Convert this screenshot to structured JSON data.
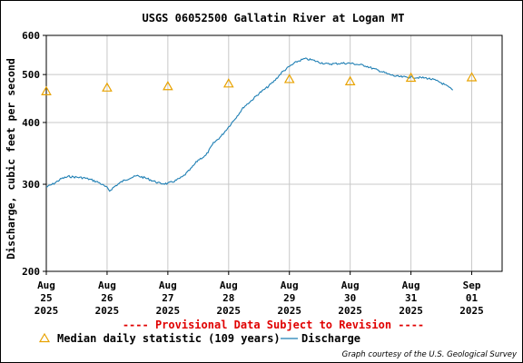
{
  "chart_data": {
    "type": "line",
    "title": "USGS 06052500 Gallatin River at Logan MT",
    "ylabel": "Discharge, cubic feet per second",
    "y_scale": "log",
    "ylim": [
      200,
      600
    ],
    "y_ticks": [
      200,
      300,
      400,
      500,
      600
    ],
    "x_start": "2025-08-25T00:00",
    "x_end": "2025-09-01T12:00",
    "x_tick_dates": [
      "2025-08-25",
      "2025-08-26",
      "2025-08-27",
      "2025-08-28",
      "2025-08-29",
      "2025-08-30",
      "2025-08-31",
      "2025-09-01"
    ],
    "x_tick_labels": [
      [
        "Aug",
        "25",
        "2025"
      ],
      [
        "Aug",
        "26",
        "2025"
      ],
      [
        "Aug",
        "27",
        "2025"
      ],
      [
        "Aug",
        "28",
        "2025"
      ],
      [
        "Aug",
        "29",
        "2025"
      ],
      [
        "Aug",
        "30",
        "2025"
      ],
      [
        "Aug",
        "31",
        "2025"
      ],
      [
        "Sep",
        "01",
        "2025"
      ]
    ],
    "grid": true,
    "series": [
      {
        "name": "Discharge",
        "color": "#1f7fb4",
        "points": [
          [
            "2025-08-25T00:00",
            296
          ],
          [
            "2025-08-25T03:00",
            301
          ],
          [
            "2025-08-25T06:00",
            308
          ],
          [
            "2025-08-25T09:00",
            311
          ],
          [
            "2025-08-25T12:00",
            310
          ],
          [
            "2025-08-25T15:00",
            309
          ],
          [
            "2025-08-25T18:00",
            306
          ],
          [
            "2025-08-25T21:00",
            302
          ],
          [
            "2025-08-26T00:00",
            295
          ],
          [
            "2025-08-26T01:00",
            291
          ],
          [
            "2025-08-26T03:00",
            297
          ],
          [
            "2025-08-26T06:00",
            304
          ],
          [
            "2025-08-26T09:00",
            309
          ],
          [
            "2025-08-26T12:00",
            312
          ],
          [
            "2025-08-26T15:00",
            309
          ],
          [
            "2025-08-26T18:00",
            305
          ],
          [
            "2025-08-26T21:00",
            301
          ],
          [
            "2025-08-27T00:00",
            301
          ],
          [
            "2025-08-27T03:00",
            305
          ],
          [
            "2025-08-27T06:00",
            311
          ],
          [
            "2025-08-27T09:00",
            322
          ],
          [
            "2025-08-27T12:00",
            336
          ],
          [
            "2025-08-27T15:00",
            343
          ],
          [
            "2025-08-27T18:00",
            363
          ],
          [
            "2025-08-27T21:00",
            375
          ],
          [
            "2025-08-28T00:00",
            392
          ],
          [
            "2025-08-28T03:00",
            410
          ],
          [
            "2025-08-28T06:00",
            430
          ],
          [
            "2025-08-28T09:00",
            443
          ],
          [
            "2025-08-28T12:00",
            458
          ],
          [
            "2025-08-28T15:00",
            470
          ],
          [
            "2025-08-28T18:00",
            485
          ],
          [
            "2025-08-28T21:00",
            505
          ],
          [
            "2025-08-29T00:00",
            519
          ],
          [
            "2025-08-29T03:00",
            531
          ],
          [
            "2025-08-29T06:00",
            538
          ],
          [
            "2025-08-29T09:00",
            535
          ],
          [
            "2025-08-29T12:00",
            529
          ],
          [
            "2025-08-29T15:00",
            525
          ],
          [
            "2025-08-29T18:00",
            526
          ],
          [
            "2025-08-29T21:00",
            527
          ],
          [
            "2025-08-30T00:00",
            527
          ],
          [
            "2025-08-30T03:00",
            524
          ],
          [
            "2025-08-30T06:00",
            521
          ],
          [
            "2025-08-30T09:00",
            514
          ],
          [
            "2025-08-30T12:00",
            508
          ],
          [
            "2025-08-30T15:00",
            501
          ],
          [
            "2025-08-30T18:00",
            496
          ],
          [
            "2025-08-30T21:00",
            494
          ],
          [
            "2025-08-31T00:00",
            494
          ],
          [
            "2025-08-31T03:00",
            493
          ],
          [
            "2025-08-31T06:00",
            492
          ],
          [
            "2025-08-31T09:00",
            488
          ],
          [
            "2025-08-31T12:00",
            481
          ],
          [
            "2025-08-31T15:00",
            471
          ],
          [
            "2025-08-31T16:30",
            465
          ]
        ]
      },
      {
        "name": "Median daily statistic (109 years)",
        "color": "#e8a200",
        "marker": "triangle",
        "points": [
          [
            "2025-08-25T00:00",
            462
          ],
          [
            "2025-08-26T00:00",
            470
          ],
          [
            "2025-08-27T00:00",
            473
          ],
          [
            "2025-08-28T00:00",
            479
          ],
          [
            "2025-08-29T00:00",
            489
          ],
          [
            "2025-08-30T00:00",
            484
          ],
          [
            "2025-08-31T00:00",
            492
          ],
          [
            "2025-09-01T00:00",
            493
          ]
        ]
      }
    ]
  },
  "provisional_notice": "---- Provisional Data Subject to Revision ----",
  "legend": {
    "median_label": "Median daily statistic (109 years)",
    "discharge_label": "Discharge"
  },
  "credit": "Graph courtesy of the U.S. Geological Survey"
}
